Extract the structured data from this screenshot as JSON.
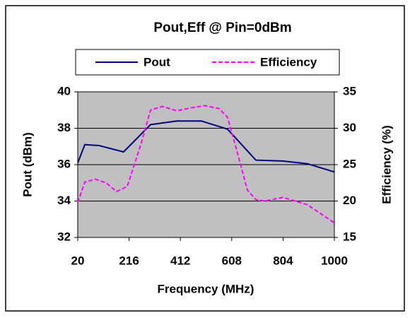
{
  "chart_data": {
    "type": "line",
    "title": "Pout,Eff @ Pin=0dBm",
    "x_label": "Frequency  (MHz)",
    "y_label": "Pout (dBm)",
    "y2_label": "Efficiency (%)",
    "xlim": [
      20,
      1000
    ],
    "xticks": [
      20,
      216,
      412,
      608,
      804,
      1000
    ],
    "ylim": [
      32,
      40
    ],
    "yticks": [
      32,
      34,
      36,
      38,
      40
    ],
    "y2lim": [
      15,
      35
    ],
    "y2ticks": [
      15,
      20,
      25,
      30,
      35
    ],
    "grid": true,
    "legend": "top",
    "plot_background": "#c0c0c0",
    "series": [
      {
        "name": "Pout",
        "color": "#000080",
        "style": "solid",
        "x": [
          20,
          47,
          101,
          195,
          298,
          398,
          492,
          592,
          700,
          803,
          897,
          1000
        ],
        "values": [
          36.1,
          37.1,
          37.05,
          36.7,
          38.2,
          38.4,
          38.4,
          37.95,
          36.25,
          36.2,
          36.05,
          35.6
        ]
      },
      {
        "name": "Efficiency",
        "color": "#ff00ff",
        "style": "dashed",
        "axis": "y2",
        "x": [
          20,
          47,
          87,
          128,
          168,
          209,
          263,
          298,
          344,
          398,
          452,
          506,
          560,
          592,
          627,
          668,
          700,
          735,
          803,
          897,
          1000
        ],
        "values": [
          19.8,
          22.6,
          23,
          22.5,
          21.3,
          22,
          28,
          32.5,
          33,
          32.4,
          32.8,
          33.1,
          32.7,
          31.5,
          27,
          21.5,
          20.2,
          20,
          20.5,
          19.5,
          17
        ]
      }
    ]
  }
}
